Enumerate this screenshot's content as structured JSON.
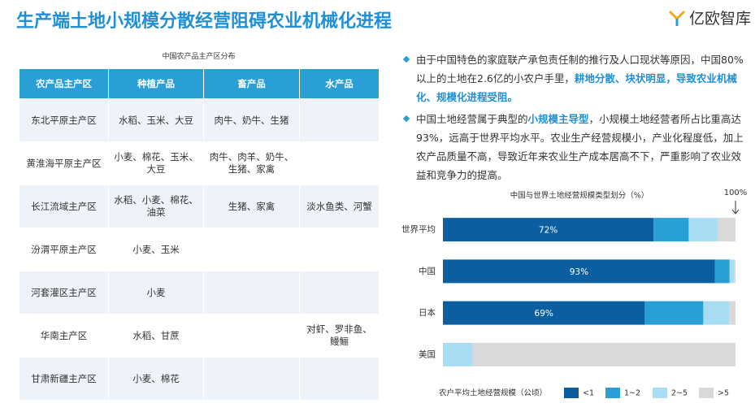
{
  "title": "生产端土地小规模分散经营阻碍农业机械化进程",
  "logo": "亿欧智库",
  "table": {
    "caption": "中国农产品主产区分布",
    "header": [
      "农产品主产区",
      "种植产品",
      "畜产品",
      "水产品"
    ],
    "rows": [
      [
        "东北平原主产区",
        "水稻、玉米、大豆",
        "肉牛、奶牛、生猪",
        null
      ],
      [
        "黄淮海平原主产区",
        "小麦、棉花、玉米、大豆",
        "肉牛、肉羊、奶牛、生猪、家禽",
        null
      ],
      [
        "长江流域主产区",
        "水稻、小麦、棉花、油菜",
        "生猪、家禽",
        "淡水鱼类、河蟹"
      ],
      [
        "汾渭平原主产区",
        "小麦、玉米",
        null,
        null
      ],
      [
        "河套灌区主产区",
        "小麦",
        null,
        null
      ],
      [
        "华南主产区",
        "水稻、甘蔗",
        null,
        "对虾、罗非鱼、鳗鲡"
      ],
      [
        "甘肃新疆主产区",
        "小麦、棉花",
        null,
        null
      ]
    ]
  },
  "bullets": [
    [
      {
        "text": "由于中国特色的家庭联产承包责任制的推行及人口现状等原因，中国80%以上的土地在2.6亿的小农户手里，"
      },
      {
        "text": "耕地分散、块状明显，导致农业机械化、规模化进程受阻。",
        "highlight": true
      }
    ],
    [
      {
        "text": "中国土地经营属于典型的"
      },
      {
        "text": "小规模主导型",
        "highlight": true
      },
      {
        "text": "，小规模土地经营者所占比重高达93%，远高于世界平均水平。农业生产经营规模小，产业化程度低，加上农产品质量不高，导致近年来农业生产成本居高不下，严重影响了农业效益和竞争力的提高。"
      }
    ]
  ],
  "chart_data": {
    "type": "stacked_barh",
    "title": "中国与世界土地经营规模类型划分（%）",
    "annotation": "100%",
    "legend_title": "农户平均土地经营规模（公顷）",
    "categories": [
      "世界平均",
      "中国",
      "日本",
      "美国"
    ],
    "xlim": [
      0,
      100
    ],
    "series": [
      {
        "name": "<1",
        "color": "#0b5fa1",
        "values": [
          72,
          93,
          69,
          0
        ],
        "value_labels": [
          "72%",
          "93%",
          "69%",
          null
        ]
      },
      {
        "name": "1~2",
        "color": "#2a9fd6",
        "values": [
          12,
          5,
          20,
          0
        ]
      },
      {
        "name": "2~5",
        "color": "#a7dcf3",
        "values": [
          10,
          1.5,
          9,
          10
        ]
      },
      {
        "name": ">5",
        "color": "#d9d9d9",
        "values": [
          6,
          0.5,
          2,
          90
        ]
      }
    ]
  }
}
